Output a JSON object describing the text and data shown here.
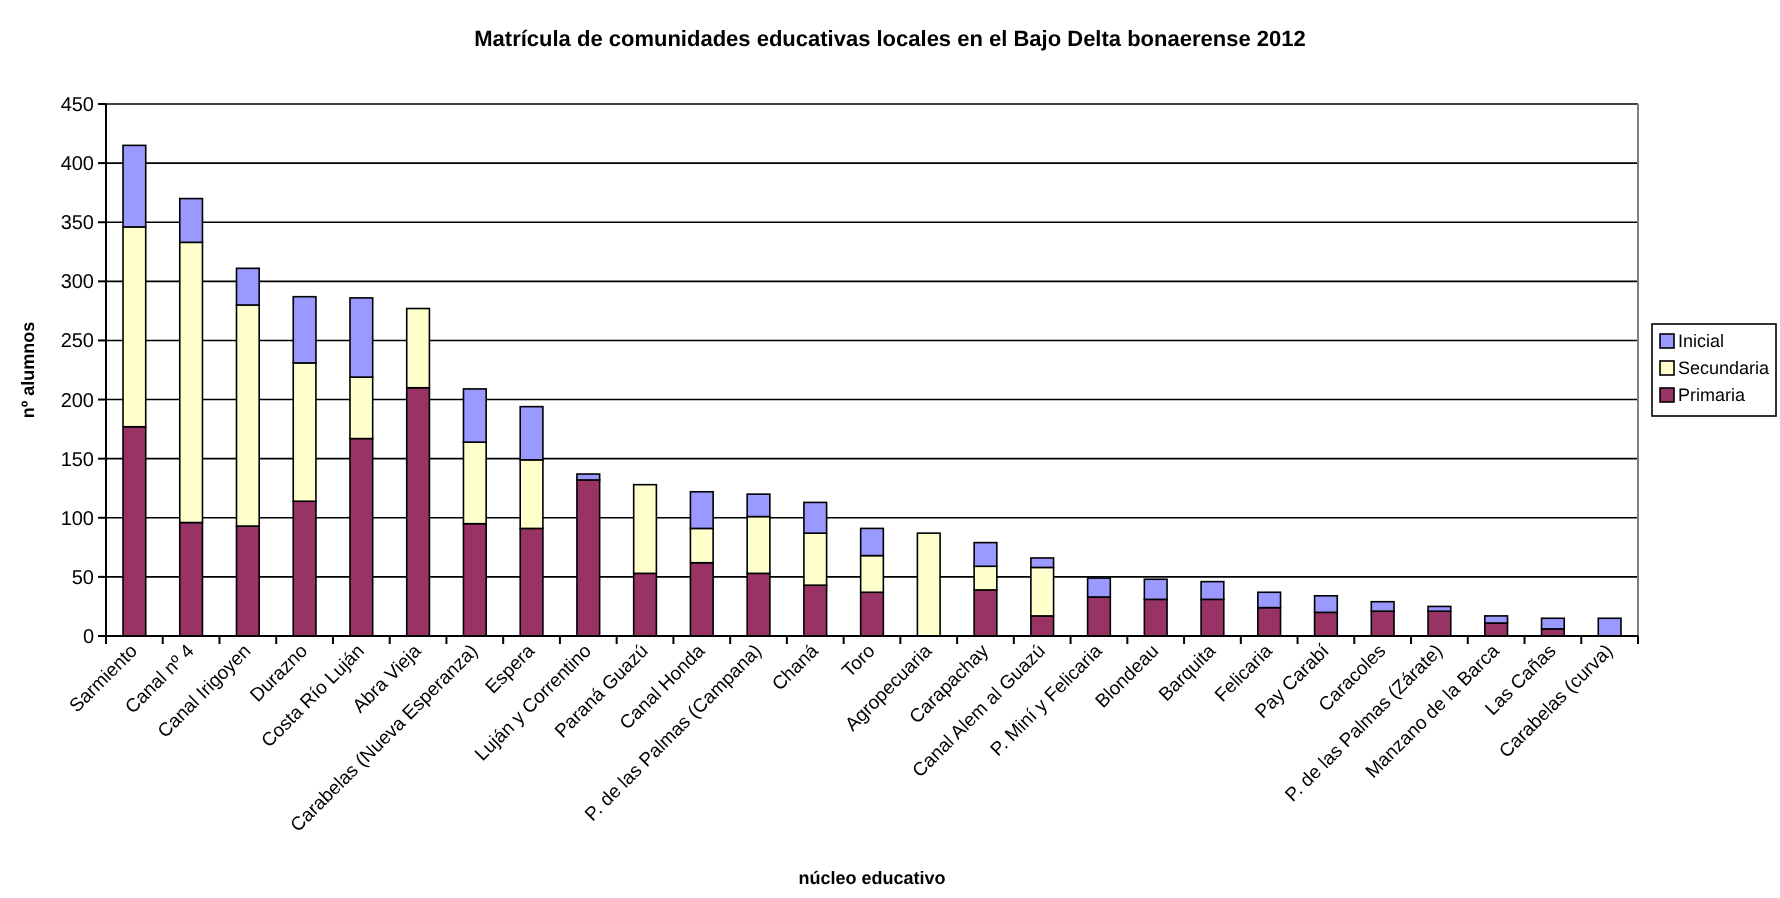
{
  "chart_data": {
    "type": "bar",
    "stacked": true,
    "title": "Matrícula de comunidades educativas locales en el Bajo Delta bonaerense 2012",
    "xlabel": "núcleo educativo",
    "ylabel": "nº alumnos",
    "categories": [
      "Sarmiento",
      "Canal nº 4",
      "Canal Irigoyen",
      "Durazno",
      "Costa Río Luján",
      "Abra Vieja",
      "Carabelas (Nueva Esperanza)",
      "Espera",
      "Luján y Correntino",
      "Paraná Guazú",
      "Canal Honda",
      "P. de las Palmas (Campana)",
      "Chaná",
      "Toro",
      "Agropecuaria",
      "Carapachay",
      "Canal Alem al Guazú",
      "P. Miní y Felicaria",
      "Blondeau",
      "Barquita",
      "Felicaria",
      "Pay Carabí",
      "Caracoles",
      "P. de las Palmas (Zárate)",
      "Manzano de la Barca",
      "Las Cañas",
      "Carabelas (curva)"
    ],
    "series": [
      {
        "name": "Primaria",
        "color": "#993366",
        "values": [
          177,
          96,
          93,
          114,
          167,
          210,
          95,
          91,
          132,
          53,
          62,
          53,
          43,
          37,
          null,
          39,
          17,
          33,
          31,
          31,
          24,
          20,
          21,
          21,
          11,
          6,
          null
        ]
      },
      {
        "name": "Secundaria",
        "color": "#ffffcc",
        "values": [
          169,
          237,
          187,
          117,
          52,
          67,
          69,
          58,
          null,
          75,
          29,
          48,
          44,
          31,
          87,
          20,
          41,
          null,
          null,
          null,
          null,
          null,
          null,
          null,
          null,
          null,
          null
        ]
      },
      {
        "name": "Inicial",
        "color": "#9999ff",
        "values": [
          69,
          37,
          31,
          56,
          67,
          null,
          45,
          45,
          5,
          null,
          31,
          19,
          26,
          23,
          null,
          20,
          8,
          16,
          17,
          15,
          13,
          14,
          8,
          4,
          6,
          9,
          15
        ]
      }
    ],
    "ylim": [
      0,
      450
    ],
    "yticks": [
      0,
      50,
      100,
      150,
      200,
      250,
      300,
      350,
      400,
      450
    ],
    "grid": "y",
    "legend": "right"
  }
}
